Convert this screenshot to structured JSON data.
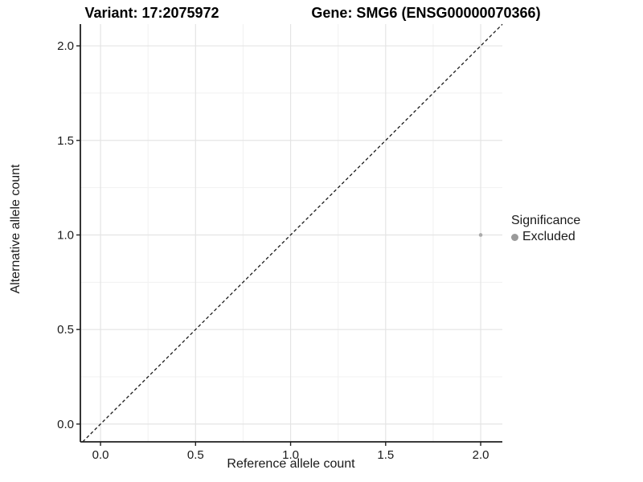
{
  "chart_data": {
    "type": "scatter",
    "title_left": "Variant: 17:2075972",
    "title_right": "Gene: SMG6 (ENSG00000070366)",
    "xlabel": "Reference allele count",
    "ylabel": "Alternative allele count",
    "xlim": [
      -0.106,
      2.114
    ],
    "ylim": [
      -0.094,
      2.115
    ],
    "x_ticks": [
      "0.0",
      "0.5",
      "1.0",
      "1.5",
      "2.0"
    ],
    "y_ticks": [
      "0.0",
      "0.5",
      "1.0",
      "1.5",
      "2.0"
    ],
    "minor_ticks": [
      0.25,
      0.75,
      1.25,
      1.75
    ],
    "grid": "major+minor",
    "points": [
      {
        "x": 2.0,
        "y": 1.0,
        "series": "Excluded"
      }
    ],
    "reference_line": {
      "slope": 1,
      "intercept": 0,
      "style": "dashed"
    },
    "legend": {
      "title": "Significance",
      "position": "right",
      "items": [
        {
          "label": "Excluded",
          "color": "#9a9a9a"
        }
      ]
    },
    "colors": {
      "background": "#ffffff",
      "point": "#ababab",
      "grid_major": "#e4e4e4",
      "grid_minor": "#f1f1f1",
      "axis": "#1f1f1f",
      "tick_text": "#1a1a1a",
      "reference_line": "#1a1a1a"
    }
  }
}
